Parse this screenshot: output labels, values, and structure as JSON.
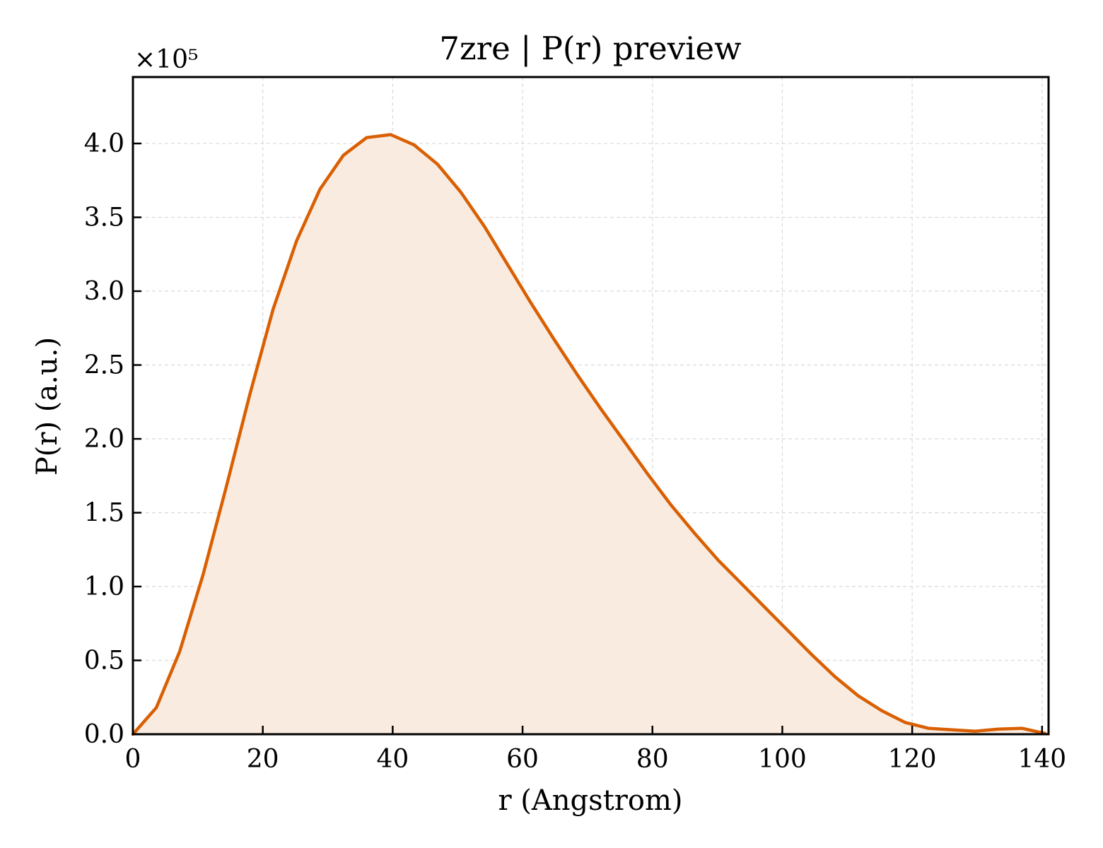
{
  "chart_data": {
    "type": "area",
    "title": "7zre | P(r) preview",
    "xlabel": "r (Angstrom)",
    "ylabel": "P(r) (a.u.)",
    "y_offset_label": "×10⁵",
    "xlim": [
      0,
      141
    ],
    "ylim": [
      0,
      4.45
    ],
    "y_scale_factor": 100000,
    "xticks": [
      0,
      20,
      40,
      60,
      80,
      100,
      120,
      140
    ],
    "xtick_labels": [
      "0",
      "20",
      "40",
      "60",
      "80",
      "100",
      "120",
      "140"
    ],
    "yticks": [
      0.0,
      0.5,
      1.0,
      1.5,
      2.0,
      2.5,
      3.0,
      3.5,
      4.0
    ],
    "ytick_labels": [
      "0.0",
      "0.5",
      "1.0",
      "1.5",
      "2.0",
      "2.5",
      "3.0",
      "3.5",
      "4.0"
    ],
    "grid": true,
    "line_color": "#d95f02",
    "fill_color": "#f9ebe0",
    "x": [
      0,
      3.6,
      7.2,
      10.8,
      14.4,
      18.0,
      21.6,
      25.2,
      28.8,
      32.4,
      36.0,
      39.7,
      43.3,
      46.9,
      50.5,
      54.1,
      57.7,
      61.3,
      64.9,
      68.5,
      72.1,
      75.7,
      79.3,
      82.9,
      86.5,
      90.1,
      93.7,
      97.3,
      100.9,
      104.5,
      108.1,
      111.7,
      115.3,
      118.9,
      122.5,
      126.1,
      129.7,
      133.3,
      136.9,
      140.5
    ],
    "y": [
      0.0,
      0.18,
      0.56,
      1.08,
      1.68,
      2.3,
      2.88,
      3.34,
      3.69,
      3.92,
      4.04,
      4.06,
      3.99,
      3.86,
      3.67,
      3.44,
      3.18,
      2.92,
      2.67,
      2.43,
      2.2,
      1.98,
      1.76,
      1.55,
      1.36,
      1.18,
      1.02,
      0.86,
      0.7,
      0.54,
      0.39,
      0.26,
      0.16,
      0.08,
      0.04,
      0.03,
      0.02,
      0.035,
      0.04,
      0.005
    ]
  }
}
